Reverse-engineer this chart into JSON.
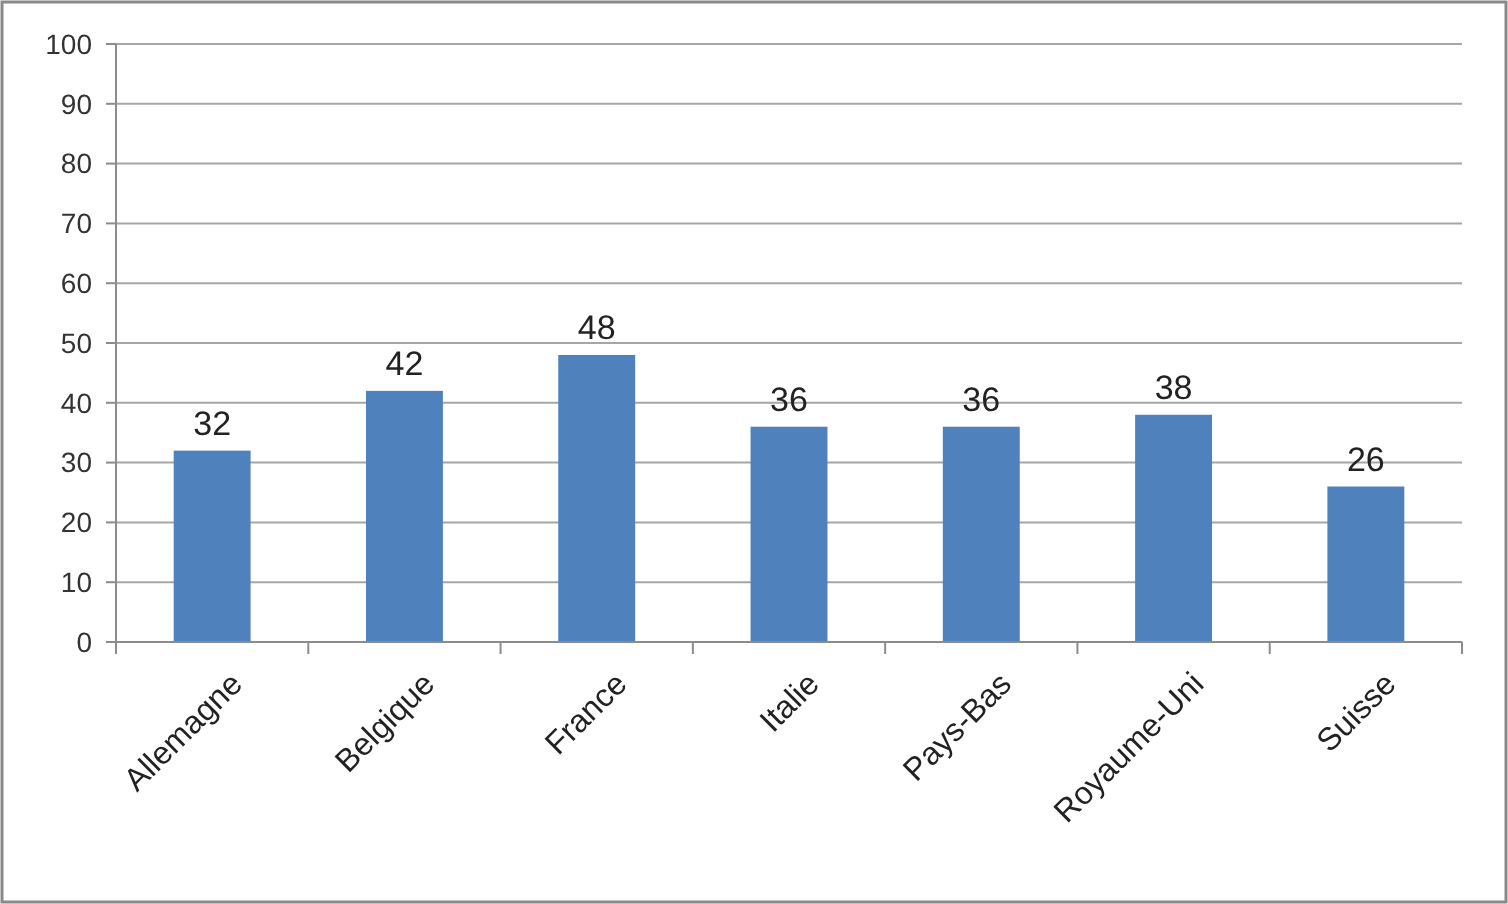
{
  "chart_data": {
    "type": "bar",
    "categories": [
      "Allemagne",
      "Belgique",
      "France",
      "Italie",
      "Pays-Bas",
      "Royaume-Uni",
      "Suisse"
    ],
    "values": [
      32,
      42,
      48,
      36,
      36,
      38,
      26
    ],
    "color": "#4f81bd",
    "ylim": [
      0,
      100
    ],
    "yticks": [
      0,
      10,
      20,
      30,
      40,
      50,
      60,
      70,
      80,
      90,
      100
    ],
    "grid": "y",
    "data_labels": true
  }
}
